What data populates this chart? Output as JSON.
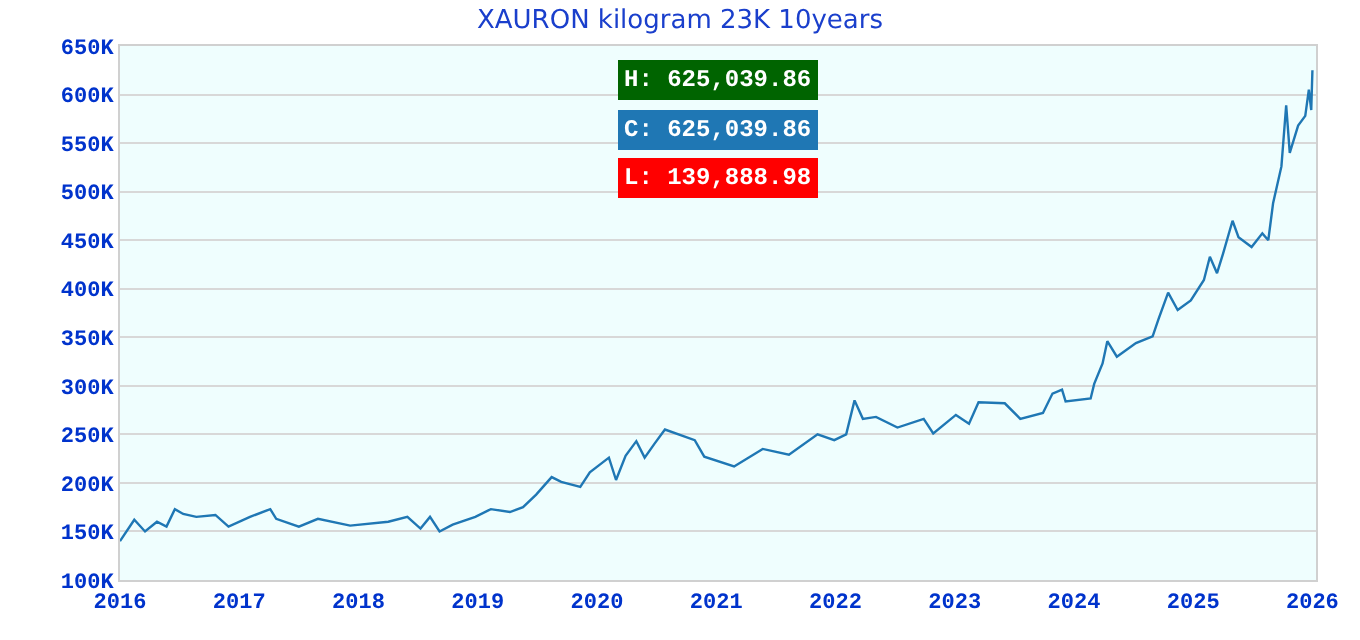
{
  "chart_data": {
    "type": "line",
    "title": "XAURON kilogram 23K 10years",
    "x": [
      2016.0,
      2016.12,
      2016.21,
      2016.31,
      2016.39,
      2016.46,
      2016.53,
      2016.64,
      2016.8,
      2016.91,
      2017.09,
      2017.26,
      2017.31,
      2017.5,
      2017.66,
      2017.93,
      2018.25,
      2018.41,
      2018.52,
      2018.6,
      2018.68,
      2018.79,
      2018.98,
      2019.11,
      2019.27,
      2019.38,
      2019.49,
      2019.62,
      2019.7,
      2019.86,
      2019.94,
      2020.1,
      2020.16,
      2020.24,
      2020.33,
      2020.4,
      2020.48,
      2020.57,
      2020.82,
      2020.9,
      2021.15,
      2021.39,
      2021.61,
      2021.85,
      2021.99,
      2022.09,
      2022.16,
      2022.23,
      2022.34,
      2022.52,
      2022.74,
      2022.82,
      2023.01,
      2023.12,
      2023.2,
      2023.42,
      2023.55,
      2023.74,
      2023.82,
      2023.9,
      2023.93,
      2024.14,
      2024.17,
      2024.24,
      2024.28,
      2024.36,
      2024.52,
      2024.66,
      2024.71,
      2024.79,
      2024.87,
      2024.98,
      2025.09,
      2025.14,
      2025.2,
      2025.25,
      2025.33,
      2025.38,
      2025.49,
      2025.58,
      2025.63,
      2025.67,
      2025.74,
      2025.78,
      2025.81,
      2025.88,
      2025.94,
      2025.97,
      2025.99,
      2026.0
    ],
    "series": [
      {
        "color": "#1f77b4",
        "values": [
          140000,
          162000,
          150000,
          160000,
          155000,
          173000,
          168000,
          165000,
          167000,
          155000,
          165000,
          173000,
          163000,
          155000,
          163000,
          156000,
          160000,
          165000,
          153000,
          165000,
          150000,
          157000,
          165000,
          173000,
          170000,
          175000,
          188000,
          206000,
          201000,
          196000,
          211000,
          226000,
          203000,
          228000,
          243000,
          226000,
          240000,
          255000,
          244000,
          227000,
          217000,
          235000,
          229000,
          250000,
          244000,
          250000,
          285000,
          266000,
          268000,
          257000,
          266000,
          251000,
          270000,
          261000,
          283000,
          282000,
          266000,
          272000,
          292000,
          296000,
          284000,
          287000,
          302000,
          323000,
          346000,
          330000,
          344000,
          351000,
          369000,
          396000,
          378000,
          388000,
          409000,
          433000,
          416000,
          436000,
          470000,
          453000,
          443000,
          457000,
          450000,
          488000,
          526000,
          589000,
          540000,
          568000,
          578000,
          605000,
          584000,
          625000
        ]
      }
    ],
    "xlim": [
      2016,
      2026.03
    ],
    "xticks": [
      2016,
      2017,
      2018,
      2019,
      2020,
      2021,
      2022,
      2023,
      2024,
      2025,
      2026
    ],
    "ylim": [
      100000,
      650000
    ],
    "yticks": [
      {
        "value": 100000,
        "label": "100K"
      },
      {
        "value": 150000,
        "label": "150K"
      },
      {
        "value": 200000,
        "label": "200K"
      },
      {
        "value": 250000,
        "label": "250K"
      },
      {
        "value": 300000,
        "label": "300K"
      },
      {
        "value": 350000,
        "label": "350K"
      },
      {
        "value": 400000,
        "label": "400K"
      },
      {
        "value": 450000,
        "label": "450K"
      },
      {
        "value": 500000,
        "label": "500K"
      },
      {
        "value": 550000,
        "label": "550K"
      },
      {
        "value": 600000,
        "label": "600K"
      },
      {
        "value": 650000,
        "label": "650K"
      }
    ],
    "grid": "y",
    "annotations": [
      "H: 625,039.86",
      "C: 625,039.86",
      "L: 139,888.98"
    ]
  }
}
